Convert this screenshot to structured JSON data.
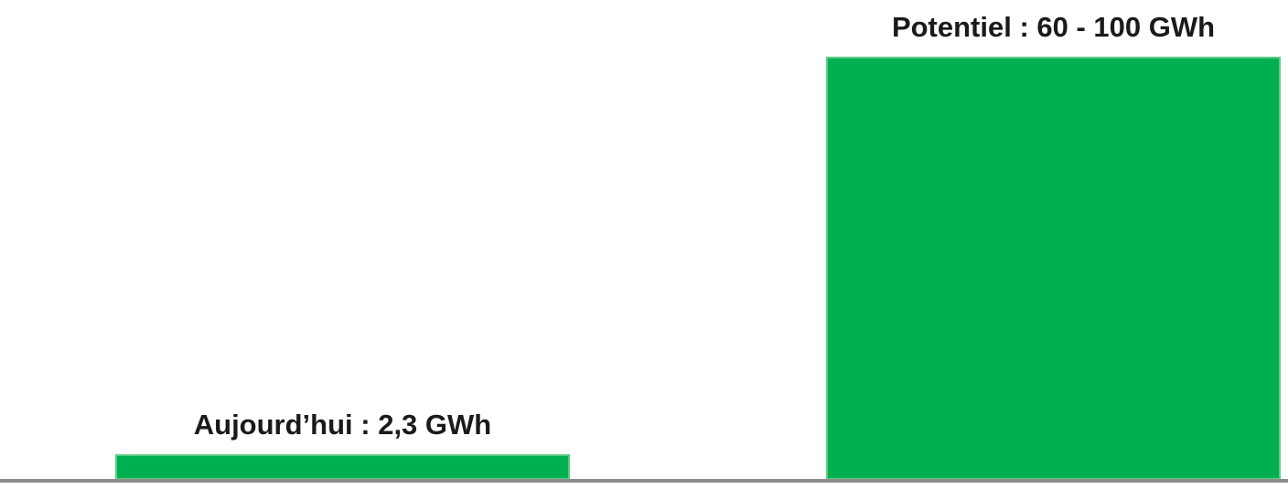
{
  "chart_data": {
    "type": "bar",
    "categories": [
      "Aujourd’hui",
      "Potentiel"
    ],
    "values": [
      2.3,
      100
    ],
    "range_low": [
      null,
      60
    ],
    "unit": "GWh",
    "data_labels": [
      "Aujourd’hui : 2,3 GWh",
      "Potentiel : 60 - 100 GWh"
    ],
    "title": "",
    "xlabel": "",
    "ylabel": "",
    "ylim": [
      0,
      100
    ],
    "grid": false,
    "legend": "none",
    "colors": {
      "bar": "#00B050",
      "bar_edge": "#5ecb83",
      "baseline": "#8c8c8c"
    }
  }
}
